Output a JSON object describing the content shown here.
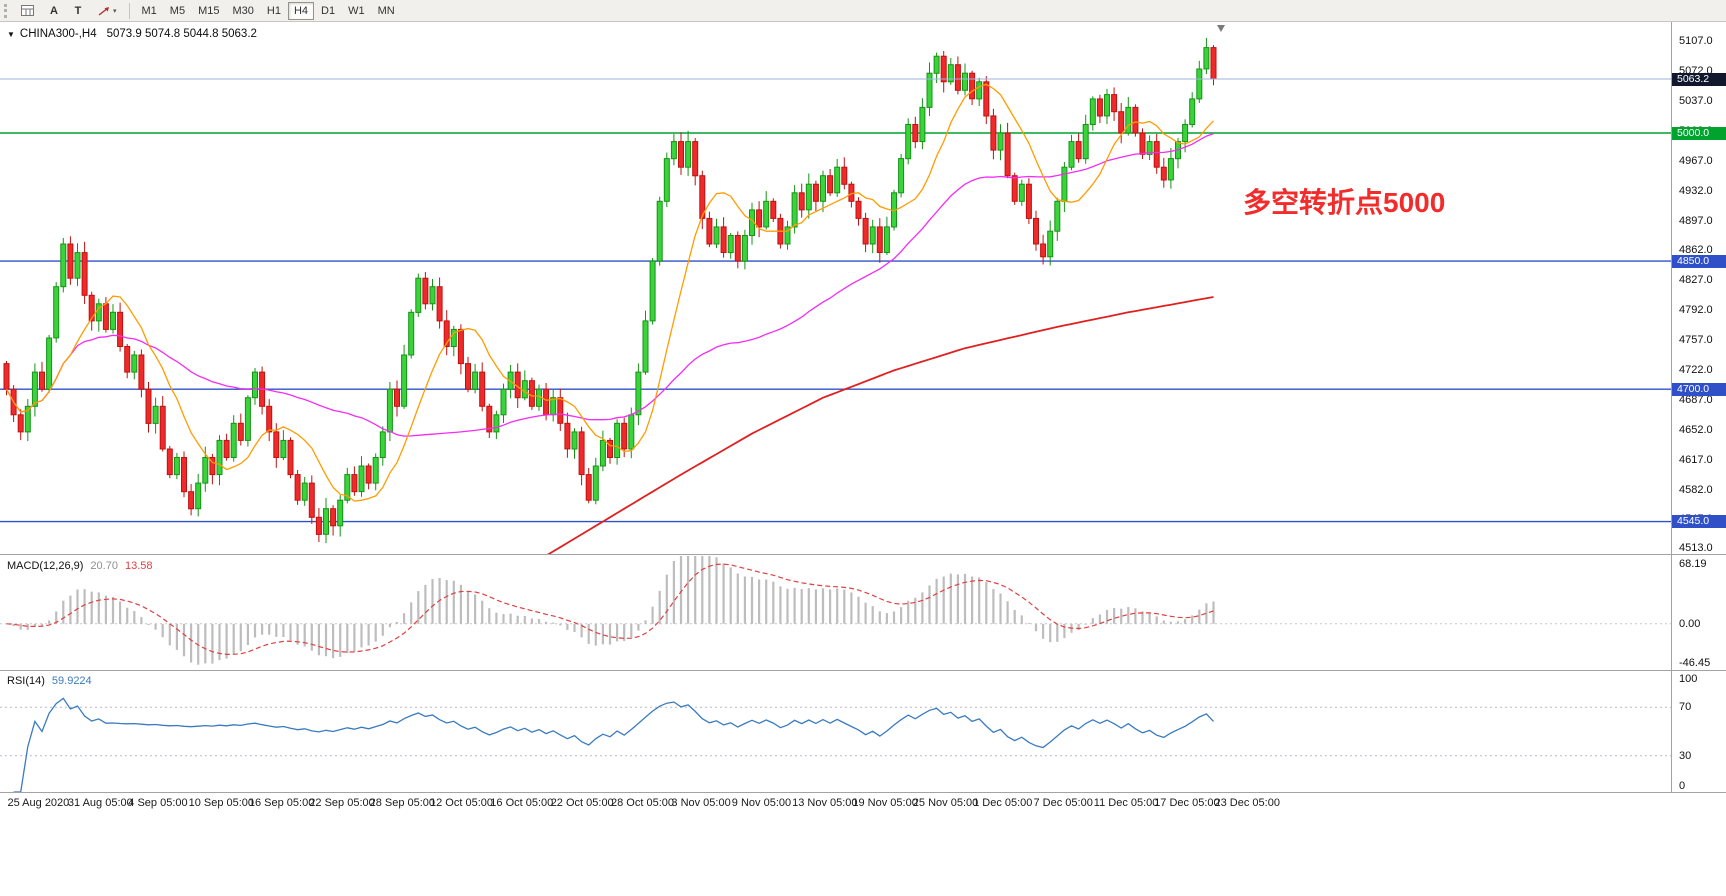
{
  "toolbar": {
    "tools": [
      {
        "name": "chart-window-icon",
        "type": "icon"
      },
      {
        "name": "text-label-tool",
        "type": "text",
        "label": "A"
      },
      {
        "name": "text-tool",
        "type": "text",
        "label": "T"
      },
      {
        "name": "draw-arrow-tool-dropdown",
        "type": "icon"
      }
    ],
    "timeframes": [
      "M1",
      "M5",
      "M15",
      "M30",
      "H1",
      "H4",
      "D1",
      "W1",
      "MN"
    ],
    "active_timeframe": "H4"
  },
  "chart_header": {
    "symbol": "CHINA300-,H4",
    "ohlc_text": "5073.9 5074.8 5044.8 5063.2"
  },
  "annotation": {
    "text": "多空转折点5000",
    "color": "#f22b2b"
  },
  "chart_data": {
    "type": "candlestick",
    "title": "CHINA300-,H4",
    "symbol": "CHINA300",
    "timeframe": "H4",
    "last_ohlc": {
      "open": 5073.9,
      "high": 5074.8,
      "low": 5044.8,
      "close": 5063.2
    },
    "y_axis": {
      "max": 5130,
      "min": 4507,
      "tick_labels": [
        "5107.0",
        "5072.0",
        "5037.0",
        "5002.0",
        "4967.0",
        "4932.0",
        "4897.0",
        "4862.0",
        "4827.0",
        "4792.0",
        "4757.0",
        "4722.0",
        "4687.0",
        "4652.0",
        "4617.0",
        "4582.0",
        "4547.0",
        "4513.0"
      ]
    },
    "x_axis": {
      "tick_labels": [
        "25 Aug 2020",
        "31 Aug 05:00",
        "4 Sep 05:00",
        "10 Sep 05:00",
        "16 Sep 05:00",
        "22 Sep 05:00",
        "28 Sep 05:00",
        "12 Oct 05:00",
        "16 Oct 05:00",
        "22 Oct 05:00",
        "28 Oct 05:00",
        "3 Nov 05:00",
        "9 Nov 05:00",
        "13 Nov 05:00",
        "19 Nov 05:00",
        "25 Nov 05:00",
        "1 Dec 05:00",
        "7 Dec 05:00",
        "11 Dec 05:00",
        "17 Dec 05:00",
        "23 Dec 05:00"
      ],
      "first_tick_bar": 0.5,
      "bars_per_tick": 8.5
    },
    "closes": [
      4700,
      4670,
      4650,
      4680,
      4720,
      4700,
      4760,
      4820,
      4870,
      4830,
      4860,
      4810,
      4780,
      4800,
      4770,
      4790,
      4750,
      4720,
      4740,
      4700,
      4660,
      4680,
      4630,
      4600,
      4620,
      4580,
      4560,
      4590,
      4620,
      4600,
      4640,
      4620,
      4660,
      4640,
      4690,
      4720,
      4680,
      4650,
      4620,
      4640,
      4600,
      4570,
      4590,
      4550,
      4530,
      4560,
      4540,
      4570,
      4600,
      4580,
      4610,
      4590,
      4620,
      4650,
      4700,
      4680,
      4740,
      4790,
      4830,
      4800,
      4820,
      4780,
      4750,
      4770,
      4730,
      4700,
      4720,
      4680,
      4650,
      4670,
      4700,
      4720,
      4690,
      4710,
      4680,
      4700,
      4670,
      4690,
      4660,
      4630,
      4650,
      4600,
      4570,
      4610,
      4640,
      4620,
      4660,
      4630,
      4670,
      4720,
      4780,
      4850,
      4920,
      4970,
      4990,
      4960,
      4990,
      4950,
      4900,
      4870,
      4890,
      4860,
      4880,
      4850,
      4880,
      4910,
      4890,
      4920,
      4900,
      4870,
      4890,
      4930,
      4910,
      4940,
      4920,
      4950,
      4930,
      4960,
      4940,
      4920,
      4900,
      4870,
      4890,
      4860,
      4890,
      4930,
      4970,
      5010,
      4990,
      5030,
      5070,
      5090,
      5060,
      5080,
      5050,
      5070,
      5040,
      5060,
      5020,
      4980,
      5000,
      4950,
      4920,
      4940,
      4900,
      4870,
      4855,
      4885,
      4920,
      4960,
      4990,
      4970,
      5010,
      5040,
      5020,
      5045,
      5025,
      5000,
      5030,
      5000,
      4975,
      4990,
      4960,
      4945,
      4970,
      4990,
      5010,
      5040,
      5075,
      5100,
      5063.2
    ],
    "horizontal_lines": [
      {
        "price": 5000.0,
        "label": "5000.0",
        "color": "#00a32e"
      },
      {
        "price": 4850.0,
        "label": "4850.0",
        "color": "#3050c8"
      },
      {
        "price": 4700.0,
        "label": "4700.0",
        "color": "#3050c8"
      },
      {
        "price": 4545.0,
        "label": "4545.0",
        "color": "#3050c8"
      }
    ],
    "current_price": {
      "value": 5063.2,
      "label": "5063.2",
      "badge_color": "#11182e",
      "line_color": "#9db3dd"
    },
    "moving_averages": [
      {
        "name": "fast-ma",
        "type": "sma",
        "period": 10,
        "color": "#ff9c00"
      },
      {
        "name": "slow-ma",
        "type": "sma",
        "period": 45,
        "color": "#f32cf3"
      },
      {
        "name": "long-trend-ma",
        "color": "#e02020",
        "anchors": [
          [
            73,
            4488
          ],
          [
            75,
            4500
          ],
          [
            85,
            4550
          ],
          [
            95,
            4600
          ],
          [
            105,
            4648
          ],
          [
            115,
            4690
          ],
          [
            125,
            4722
          ],
          [
            135,
            4748
          ],
          [
            148,
            4773
          ],
          [
            158,
            4790
          ],
          [
            170,
            4808
          ]
        ]
      }
    ],
    "candle_colors": {
      "up_fill": "#3bd33b",
      "up_stroke": "#149414",
      "down_fill": "#ee2a2a",
      "down_stroke": "#c01111"
    },
    "indicators": {
      "macd": {
        "label": "MACD(12,26,9)",
        "macd_value": "20.70",
        "signal_value": "13.58",
        "macd_value_color": "#8f8f8f",
        "fast": 12,
        "slow": 26,
        "signal": 9,
        "axis_labels": [
          "68.19",
          "0.00",
          "-46.45"
        ],
        "max": 68.19,
        "min": -46.45,
        "histogram_color": "#bdbdbd",
        "signal_color": "#e04040"
      },
      "rsi": {
        "label": "RSI(14)",
        "value": "59.9224",
        "period": 14,
        "axis_labels": [
          "100",
          "70",
          "30",
          "0"
        ],
        "levels": [
          70,
          30
        ],
        "max": 100,
        "min": 0,
        "line_color": "#3a7bbf"
      }
    }
  }
}
